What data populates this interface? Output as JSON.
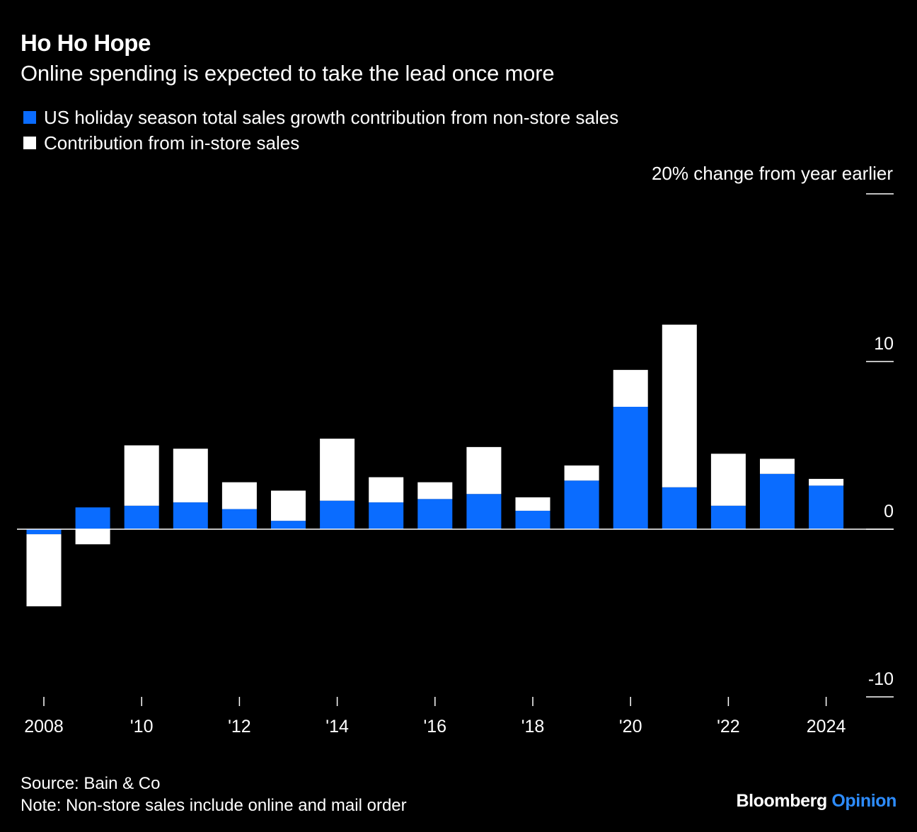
{
  "header": {
    "title": "Ho Ho Hope",
    "subtitle": "Online spending is expected to take the lead once more"
  },
  "legend": {
    "items": [
      {
        "label": "US holiday season total sales growth contribution from non-store sales",
        "color": "#0a6cff"
      },
      {
        "label": "Contribution from in-store sales",
        "color": "#ffffff"
      }
    ]
  },
  "footer": {
    "source": "Source: Bain & Co",
    "note": "Note: Non-store sales include online and mail order"
  },
  "brand": {
    "name": "Bloomberg",
    "suffix": "Opinion",
    "suffix_color": "#2d8cff"
  },
  "chart_data": {
    "type": "bar",
    "stacked": true,
    "unit_label": "20% change from year earlier",
    "x": [
      2008,
      2009,
      2010,
      2011,
      2012,
      2013,
      2014,
      2015,
      2016,
      2017,
      2018,
      2019,
      2020,
      2021,
      2022,
      2023,
      2024
    ],
    "x_tick_labels": [
      {
        "x": 2008,
        "label": "2008"
      },
      {
        "x": 2010,
        "label": "'10"
      },
      {
        "x": 2012,
        "label": "'12"
      },
      {
        "x": 2014,
        "label": "'14"
      },
      {
        "x": 2016,
        "label": "'16"
      },
      {
        "x": 2018,
        "label": "'18"
      },
      {
        "x": 2020,
        "label": "'20"
      },
      {
        "x": 2022,
        "label": "'22"
      },
      {
        "x": 2024,
        "label": "2024"
      }
    ],
    "y_ticks": [
      {
        "value": 20,
        "label": ""
      },
      {
        "value": 10,
        "label": "10"
      },
      {
        "value": 0,
        "label": "0"
      },
      {
        "value": -10,
        "label": "-10"
      }
    ],
    "ylim": [
      -10,
      20
    ],
    "series": [
      {
        "name": "US holiday season total sales growth contribution from non-store sales",
        "color": "#0a6cff",
        "values": [
          -0.3,
          1.3,
          1.4,
          1.6,
          1.2,
          0.5,
          1.7,
          1.6,
          1.8,
          2.1,
          1.1,
          2.9,
          7.3,
          2.5,
          1.4,
          3.3,
          2.6
        ]
      },
      {
        "name": "Contribution from in-store sales",
        "color": "#ffffff",
        "values": [
          -4.3,
          -0.9,
          3.6,
          3.2,
          1.6,
          1.8,
          3.7,
          1.5,
          1.0,
          2.8,
          0.8,
          0.9,
          2.2,
          9.7,
          3.1,
          0.9,
          0.4
        ]
      }
    ]
  }
}
